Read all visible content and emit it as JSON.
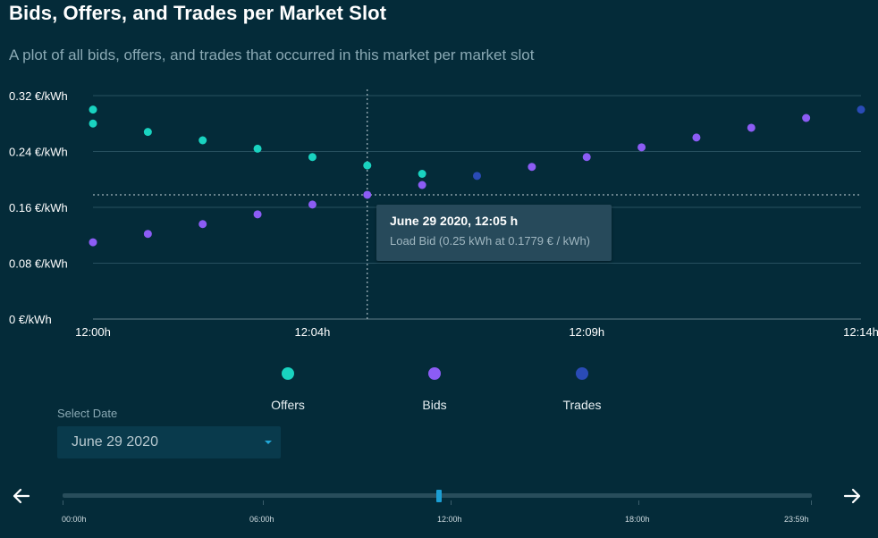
{
  "header": {
    "title": "Bids, Offers, and Trades per Market Slot",
    "subtitle": "A plot of all bids, offers, and trades that occurred in this market per market slot"
  },
  "colors": {
    "background": "#042b39",
    "offers": "#19d3c0",
    "bids": "#8c5cf5",
    "trades": "#2a4bb6",
    "grid": "#27505f"
  },
  "chart_data": {
    "type": "scatter",
    "x_unit": "minutes after 12:00h",
    "x_tick_labels": [
      "12:00h",
      "12:04h",
      "12:09h",
      "12:14h"
    ],
    "x_tick_positions": [
      0,
      4,
      9,
      14
    ],
    "xlim": [
      0,
      14
    ],
    "y_tick_labels": [
      "0 €/kWh",
      "0.08 €/kWh",
      "0.16 €/kWh",
      "0.24 €/kWh",
      "0.32 €/kWh"
    ],
    "y_tick_values": [
      0,
      0.08,
      0.16,
      0.24,
      0.32
    ],
    "ylim": [
      0,
      0.32
    ],
    "grid": true,
    "series": [
      {
        "name": "Offers",
        "points": [
          [
            0,
            0.3
          ],
          [
            0,
            0.28
          ],
          [
            1,
            0.268
          ],
          [
            2,
            0.256
          ],
          [
            3,
            0.244
          ],
          [
            4,
            0.232
          ],
          [
            5,
            0.22
          ],
          [
            6,
            0.208
          ]
        ]
      },
      {
        "name": "Bids",
        "points": [
          [
            0,
            0.11
          ],
          [
            1,
            0.122
          ],
          [
            2,
            0.136
          ],
          [
            3,
            0.15
          ],
          [
            4,
            0.164
          ],
          [
            5,
            0.178
          ],
          [
            6,
            0.192
          ],
          [
            8,
            0.218
          ],
          [
            9,
            0.232
          ],
          [
            10,
            0.246
          ],
          [
            11,
            0.26
          ],
          [
            12,
            0.274
          ],
          [
            13,
            0.288
          ]
        ]
      },
      {
        "name": "Trades",
        "points": [
          [
            7,
            0.205
          ],
          [
            14,
            0.3
          ]
        ]
      }
    ],
    "crosshair": {
      "x": 5,
      "y": 0.1779
    },
    "tooltip": {
      "title": "June 29 2020, 12:05 h",
      "body": "Load Bid (0.25 kWh at 0.1779 € / kWh)"
    }
  },
  "legend": [
    {
      "label": "Offers",
      "color": "#19d3c0"
    },
    {
      "label": "Bids",
      "color": "#8c5cf5"
    },
    {
      "label": "Trades",
      "color": "#2a4bb6"
    }
  ],
  "date_picker": {
    "label": "Select Date",
    "value": "June 29 2020"
  },
  "timeline": {
    "labels": [
      "00:00h",
      "06:00h",
      "12:00h",
      "18:00h",
      "23:59h"
    ],
    "position_fraction": 0.503
  }
}
